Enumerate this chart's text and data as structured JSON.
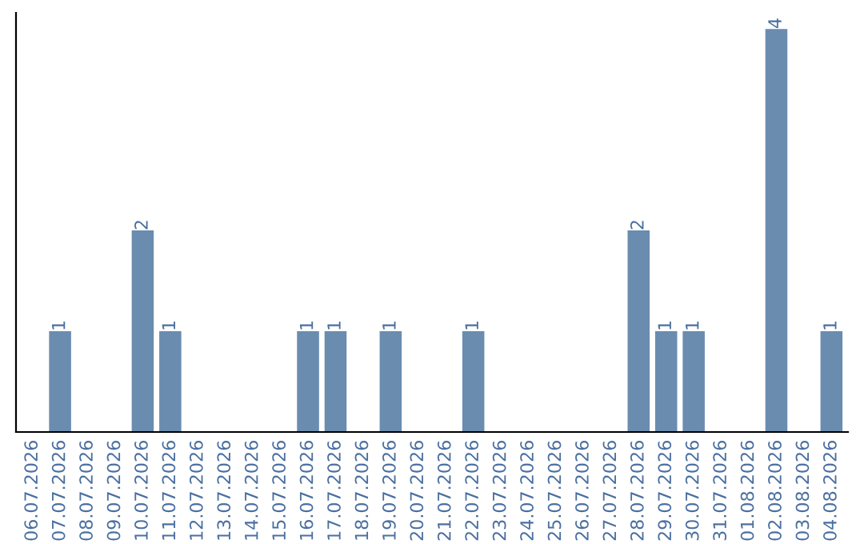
{
  "chart_data": {
    "type": "bar",
    "categories": [
      "06.07.2026",
      "07.07.2026",
      "08.07.2026",
      "09.07.2026",
      "10.07.2026",
      "11.07.2026",
      "12.07.2026",
      "13.07.2026",
      "14.07.2026",
      "15.07.2026",
      "16.07.2026",
      "17.07.2026",
      "18.07.2026",
      "19.07.2026",
      "20.07.2026",
      "21.07.2026",
      "22.07.2026",
      "23.07.2026",
      "24.07.2026",
      "25.07.2026",
      "26.07.2026",
      "27.07.2026",
      "28.07.2026",
      "29.07.2026",
      "30.07.2026",
      "31.07.2026",
      "01.08.2026",
      "02.08.2026",
      "03.08.2026",
      "04.08.2026"
    ],
    "values": [
      0,
      1,
      0,
      0,
      2,
      1,
      0,
      0,
      0,
      0,
      1,
      1,
      0,
      1,
      0,
      0,
      1,
      0,
      0,
      0,
      0,
      0,
      2,
      1,
      1,
      0,
      0,
      4,
      0,
      1
    ],
    "value_labels": [
      null,
      "1",
      null,
      null,
      "2",
      "1",
      null,
      null,
      null,
      null,
      "1",
      "1",
      null,
      "1",
      null,
      null,
      "1",
      null,
      null,
      null,
      null,
      null,
      "2",
      "1",
      "1",
      null,
      null,
      "4",
      null,
      "1"
    ],
    "color": "#6a8caf",
    "tick_labels": "x",
    "grid": false,
    "legend": false
  }
}
